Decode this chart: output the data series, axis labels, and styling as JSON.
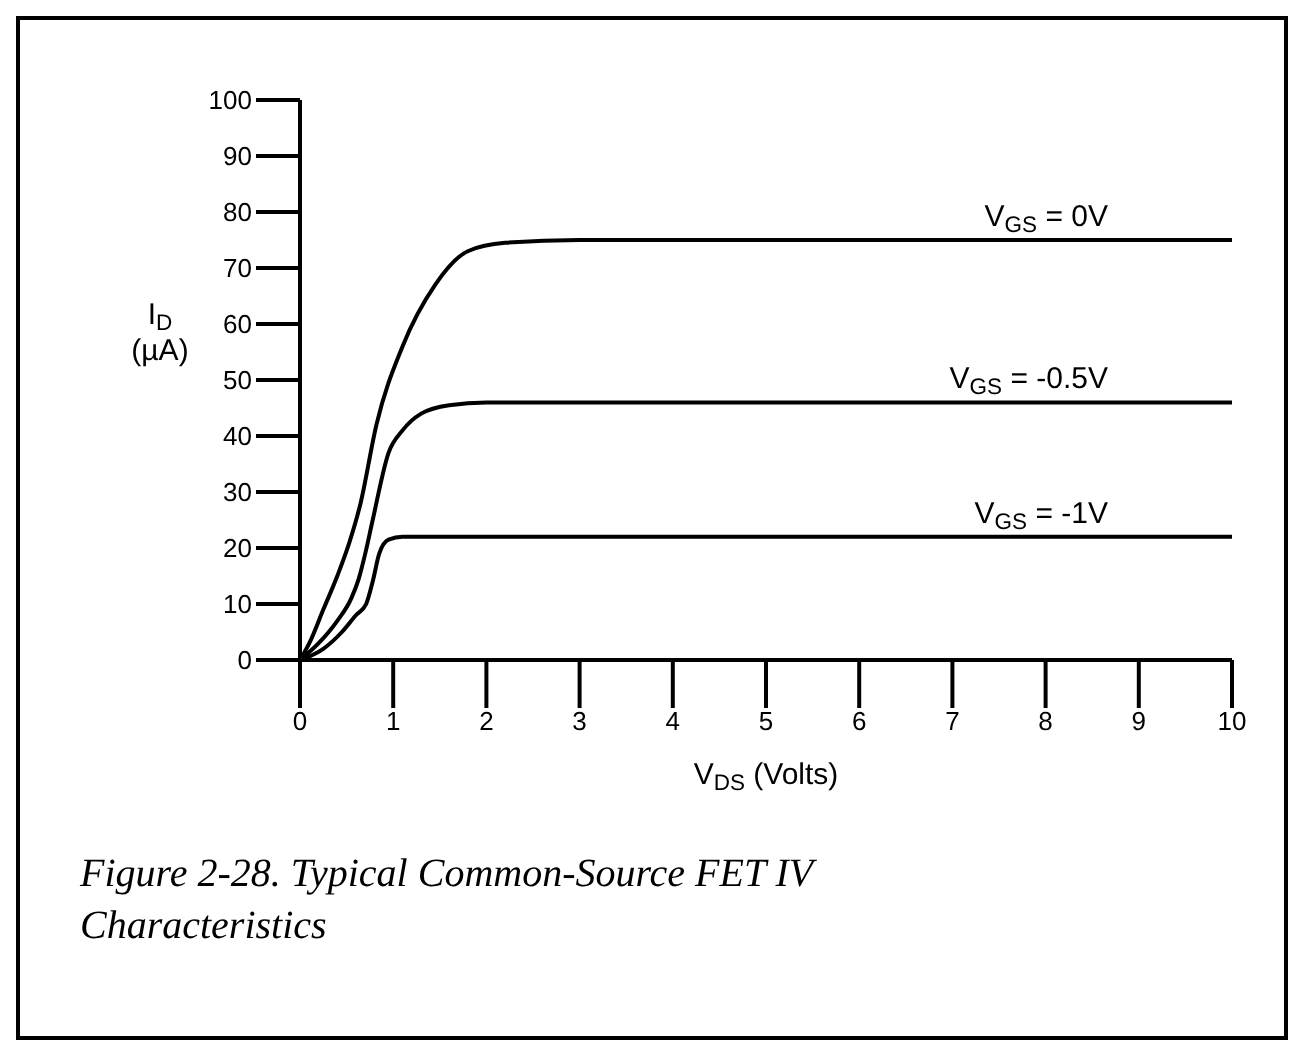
{
  "chart_data": {
    "type": "line",
    "title": "Figure 2-28. Typical Common-Source FET IV Characteristics",
    "xlabel": "V$_{DS}$ (Volts)",
    "ylabel": "I$_{D}$ (µA)",
    "xlim": [
      0,
      10
    ],
    "xticks": [
      0,
      1,
      2,
      3,
      4,
      5,
      6,
      7,
      8,
      9,
      10
    ],
    "ylim": [
      0,
      100
    ],
    "yticks": [
      0,
      10,
      20,
      30,
      40,
      50,
      60,
      70,
      80,
      90,
      100
    ],
    "grid": false,
    "legend": false,
    "marker": "none",
    "line_style": "solid",
    "series": [
      {
        "name": "V$_{GS}$ = 0V",
        "color": "#000000",
        "x": [
          0,
          0.1,
          0.25,
          0.4,
          0.53,
          0.65,
          0.82,
          1.1,
          1.45,
          1.8,
          2.2,
          3,
          10
        ],
        "values": [
          0,
          3,
          9,
          15,
          21,
          28,
          42,
          56,
          67,
          73,
          74.5,
          75,
          75
        ]
      },
      {
        "name": "V$_{GS}$ = -0.5V",
        "color": "#000000",
        "x": [
          0,
          0.2,
          0.4,
          0.55,
          0.63,
          0.7,
          0.78,
          0.95,
          1.1,
          1.3,
          1.6,
          2,
          10
        ],
        "values": [
          0,
          3,
          7,
          11,
          14.5,
          19,
          25,
          37,
          41,
          44,
          45.5,
          46,
          46
        ]
      },
      {
        "name": "V$_{GS}$ = -1V",
        "color": "#000000",
        "x": [
          0,
          0.25,
          0.45,
          0.6,
          0.71,
          0.78,
          0.85,
          0.95,
          1.1,
          10
        ],
        "values": [
          0,
          2,
          5,
          8,
          10,
          14,
          19,
          21.5,
          22,
          22
        ]
      }
    ]
  }
}
